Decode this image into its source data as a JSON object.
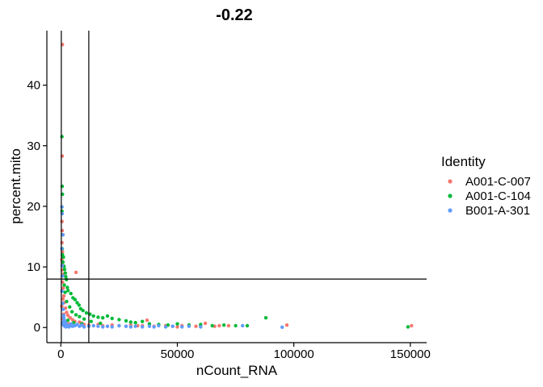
{
  "chart_data": {
    "type": "scatter",
    "title": "-0.22",
    "xlabel": "nCount_RNA",
    "ylabel": "percent.mito",
    "xlim": [
      -6000,
      157000
    ],
    "ylim": [
      -2.5,
      49
    ],
    "xticks": [
      0,
      50000,
      100000,
      150000
    ],
    "xtick_labels": [
      "0",
      "50000",
      "100000",
      "150000"
    ],
    "yticks": [
      0,
      10,
      20,
      30,
      40
    ],
    "ytick_labels": [
      "0",
      "10",
      "20",
      "30",
      "40"
    ],
    "grid": false,
    "legend": {
      "title": "Identity",
      "position": "right"
    },
    "reference_lines": {
      "vertical": [
        200,
        12000
      ],
      "horizontal": [
        8
      ]
    },
    "series": [
      {
        "name": "A001-C-007",
        "color": "#F8766D",
        "points": [
          [
            700,
            46.7
          ],
          [
            600,
            28.3
          ],
          [
            500,
            17.5
          ],
          [
            600,
            16.0
          ],
          [
            500,
            14.0
          ],
          [
            700,
            12.5
          ],
          [
            400,
            11.2
          ],
          [
            800,
            10.3
          ],
          [
            600,
            9.5
          ],
          [
            900,
            8.8
          ],
          [
            700,
            7.5
          ],
          [
            1000,
            6.5
          ],
          [
            1300,
            5.2
          ],
          [
            1500,
            4.1
          ],
          [
            2000,
            3.2
          ],
          [
            2500,
            2.5
          ],
          [
            3000,
            2.0
          ],
          [
            4000,
            1.6
          ],
          [
            5000,
            1.3
          ],
          [
            6000,
            1.0
          ],
          [
            6500,
            9.1
          ],
          [
            8000,
            0.9
          ],
          [
            9000,
            0.7
          ],
          [
            10000,
            0.5
          ],
          [
            12000,
            0.4
          ],
          [
            14000,
            0.3
          ],
          [
            16000,
            0.5
          ],
          [
            18000,
            0.3
          ],
          [
            20000,
            0.2
          ],
          [
            22000,
            0.4
          ],
          [
            25000,
            0.3
          ],
          [
            28000,
            0.2
          ],
          [
            30000,
            0.4
          ],
          [
            33000,
            0.3
          ],
          [
            35000,
            0.3
          ],
          [
            37000,
            1.2
          ],
          [
            40000,
            0.2
          ],
          [
            42000,
            0.4
          ],
          [
            45000,
            0.3
          ],
          [
            48000,
            0.2
          ],
          [
            50000,
            0.1
          ],
          [
            52000,
            0.3
          ],
          [
            55000,
            0.4
          ],
          [
            58000,
            0.2
          ],
          [
            60000,
            0.4
          ],
          [
            62000,
            0.7
          ],
          [
            66000,
            0.2
          ],
          [
            68000,
            0.3
          ],
          [
            72000,
            0.3
          ],
          [
            97000,
            0.4
          ],
          [
            150500,
            0.3
          ],
          [
            1500,
            0.5
          ],
          [
            2200,
            0.8
          ],
          [
            3500,
            0.6
          ],
          [
            800,
            1.5
          ],
          [
            1200,
            2.2
          ],
          [
            400,
            3.5
          ],
          [
            900,
            4.7
          ]
        ]
      },
      {
        "name": "A001-C-104",
        "color": "#00BA38",
        "points": [
          [
            500,
            31.5
          ],
          [
            600,
            23.3
          ],
          [
            700,
            22.0
          ],
          [
            500,
            19.2
          ],
          [
            800,
            15.3
          ],
          [
            600,
            13.0
          ],
          [
            700,
            12.0
          ],
          [
            1100,
            11.6
          ],
          [
            900,
            10.8
          ],
          [
            1400,
            10.1
          ],
          [
            1600,
            9.6
          ],
          [
            1900,
            9.0
          ],
          [
            2100,
            8.4
          ],
          [
            2400,
            7.9
          ],
          [
            2800,
            6.6
          ],
          [
            3100,
            6.1
          ],
          [
            4300,
            5.6
          ],
          [
            5200,
            4.9
          ],
          [
            6100,
            4.6
          ],
          [
            7000,
            4.1
          ],
          [
            7800,
            3.7
          ],
          [
            8500,
            3.1
          ],
          [
            9500,
            2.8
          ],
          [
            11000,
            2.4
          ],
          [
            12500,
            2.2
          ],
          [
            14000,
            1.9
          ],
          [
            16000,
            1.7
          ],
          [
            18000,
            1.6
          ],
          [
            20000,
            1.9
          ],
          [
            22000,
            1.5
          ],
          [
            25000,
            1.3
          ],
          [
            28000,
            1.1
          ],
          [
            30000,
            0.9
          ],
          [
            32000,
            0.8
          ],
          [
            35000,
            1.0
          ],
          [
            38000,
            0.6
          ],
          [
            42000,
            0.5
          ],
          [
            46000,
            0.4
          ],
          [
            50000,
            0.6
          ],
          [
            55000,
            0.4
          ],
          [
            60000,
            0.5
          ],
          [
            65000,
            0.3
          ],
          [
            70000,
            0.4
          ],
          [
            75000,
            0.3
          ],
          [
            80000,
            0.3
          ],
          [
            88000,
            1.6
          ],
          [
            149000,
            0.1
          ],
          [
            1500,
            7.0
          ],
          [
            1800,
            5.8
          ],
          [
            2500,
            4.3
          ],
          [
            3800,
            3.4
          ],
          [
            4800,
            2.6
          ],
          [
            6500,
            2.1
          ],
          [
            8000,
            1.8
          ],
          [
            10000,
            1.4
          ],
          [
            13000,
            1.0
          ],
          [
            3000,
            1.2
          ],
          [
            5500,
            0.8
          ],
          [
            9000,
            0.6
          ],
          [
            17000,
            0.7
          ]
        ]
      },
      {
        "name": "B001-A-301",
        "color": "#619CFF",
        "points": [
          [
            500,
            19.9
          ],
          [
            600,
            18.8
          ],
          [
            900,
            15.3
          ],
          [
            400,
            13.0
          ],
          [
            600,
            10.2
          ],
          [
            700,
            8.5
          ],
          [
            500,
            6.0
          ],
          [
            800,
            4.0
          ],
          [
            1000,
            3.0
          ],
          [
            1200,
            2.0
          ],
          [
            1500,
            1.2
          ],
          [
            2000,
            0.8
          ],
          [
            2500,
            0.5
          ],
          [
            3000,
            0.3
          ],
          [
            4000,
            0.4
          ],
          [
            5000,
            0.2
          ],
          [
            6000,
            0.3
          ],
          [
            8000,
            0.2
          ],
          [
            10000,
            0.1
          ],
          [
            12000,
            0.2
          ],
          [
            14000,
            0.3
          ],
          [
            16000,
            0.2
          ],
          [
            18000,
            0.1
          ],
          [
            20000,
            0.2
          ],
          [
            22000,
            0.1
          ],
          [
            25000,
            0.3
          ],
          [
            28000,
            0.2
          ],
          [
            30000,
            0.1
          ],
          [
            32000,
            0.2
          ],
          [
            35000,
            0.1
          ],
          [
            38000,
            0.2
          ],
          [
            40000,
            0.1
          ],
          [
            42000,
            0.3
          ],
          [
            45000,
            0.1
          ],
          [
            48000,
            0.2
          ],
          [
            52000,
            0.1
          ],
          [
            55000,
            0.2
          ],
          [
            60000,
            0.1
          ],
          [
            78000,
            0.3
          ],
          [
            95000,
            0.05
          ],
          [
            700,
            0.6
          ],
          [
            900,
            0.9
          ],
          [
            1100,
            0.4
          ],
          [
            1300,
            1.6
          ],
          [
            1700,
            0.2
          ],
          [
            2200,
            0.1
          ],
          [
            3500,
            0.1
          ],
          [
            4500,
            0.6
          ],
          [
            7000,
            0.5
          ],
          [
            9000,
            0.4
          ]
        ]
      }
    ]
  }
}
